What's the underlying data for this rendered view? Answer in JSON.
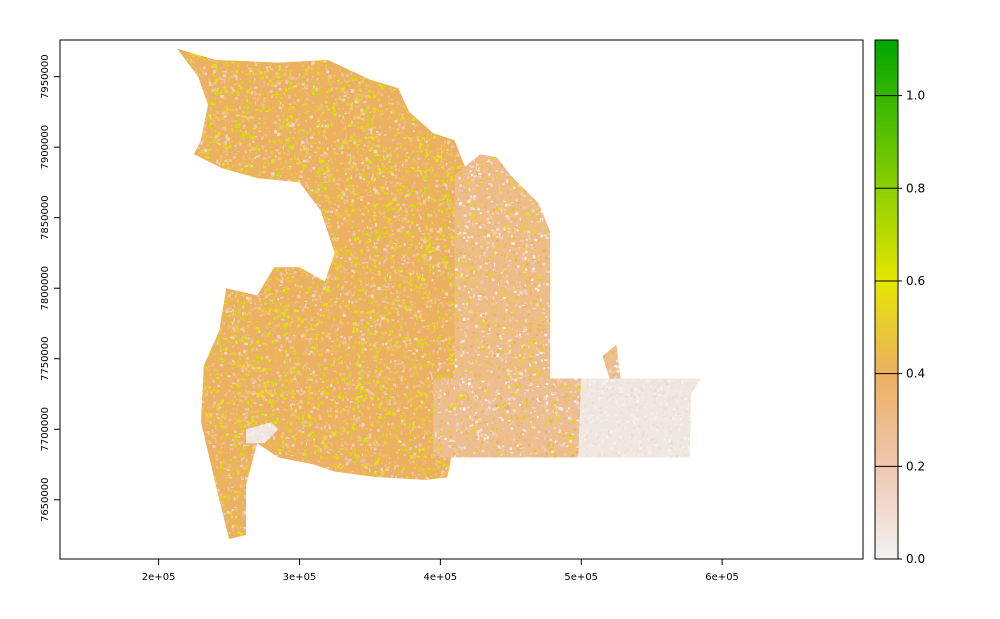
{
  "chart_data": {
    "type": "heatmap",
    "title": "",
    "xlabel": "",
    "ylabel": "",
    "xlim": [
      130000,
      700000
    ],
    "ylim": [
      7608000,
      7976000
    ],
    "x_ticks": [
      200000,
      300000,
      400000,
      500000,
      600000
    ],
    "x_tick_labels": [
      "2e+05",
      "3e+05",
      "4e+05",
      "5e+05",
      "6e+05"
    ],
    "y_ticks": [
      7650000,
      7700000,
      7750000,
      7800000,
      7850000,
      7900000,
      7950000
    ],
    "y_tick_labels": [
      "7650000",
      "7700000",
      "7750000",
      "7800000",
      "7850000",
      "7900000",
      "7950000"
    ],
    "legend": {
      "placement": "right",
      "min": 0.0,
      "max": 1.12,
      "ticks": [
        0.0,
        0.2,
        0.4,
        0.6,
        0.8,
        1.0
      ],
      "tick_labels": [
        "0.0",
        "0.2",
        "0.4",
        "0.6",
        "0.8",
        "1.0"
      ],
      "color_stops": [
        {
          "value": 0.0,
          "color": "#f2f2f2"
        },
        {
          "value": 0.2,
          "color": "#efc7b0"
        },
        {
          "value": 0.4,
          "color": "#ebb062"
        },
        {
          "value": 0.6,
          "color": "#e6e600"
        },
        {
          "value": 0.8,
          "color": "#8bd000"
        },
        {
          "value": 1.12,
          "color": "#00a600"
        }
      ]
    },
    "regions": [
      {
        "name": "western-block",
        "mean_value": 0.4,
        "polygon": [
          [
            213000,
            7970000
          ],
          [
            240000,
            7962000
          ],
          [
            285000,
            7960000
          ],
          [
            320000,
            7962000
          ],
          [
            350000,
            7948000
          ],
          [
            370000,
            7942000
          ],
          [
            378000,
            7925000
          ],
          [
            395000,
            7910000
          ],
          [
            410000,
            7905000
          ],
          [
            418000,
            7885000
          ],
          [
            425000,
            7875000
          ],
          [
            425000,
            7865000
          ],
          [
            410000,
            7860000
          ],
          [
            412000,
            7700000
          ],
          [
            405000,
            7666000
          ],
          [
            390000,
            7664000
          ],
          [
            355000,
            7666000
          ],
          [
            325000,
            7670000
          ],
          [
            310000,
            7675000
          ],
          [
            285000,
            7680000
          ],
          [
            270000,
            7690000
          ],
          [
            262000,
            7660000
          ],
          [
            262000,
            7625000
          ],
          [
            250000,
            7622000
          ],
          [
            243000,
            7650000
          ],
          [
            230000,
            7705000
          ],
          [
            232000,
            7745000
          ],
          [
            243000,
            7770000
          ],
          [
            248000,
            7800000
          ],
          [
            270000,
            7795000
          ],
          [
            282000,
            7815000
          ],
          [
            300000,
            7815000
          ],
          [
            318000,
            7805000
          ],
          [
            325000,
            7825000
          ],
          [
            315000,
            7855000
          ],
          [
            300000,
            7875000
          ],
          [
            270000,
            7878000
          ],
          [
            245000,
            7885000
          ],
          [
            225000,
            7895000
          ],
          [
            230000,
            7905000
          ],
          [
            235000,
            7930000
          ],
          [
            228000,
            7950000
          ],
          [
            213000,
            7970000
          ]
        ]
      },
      {
        "name": "central-block",
        "mean_value": 0.3,
        "polygon": [
          [
            410000,
            7880000
          ],
          [
            428000,
            7895000
          ],
          [
            440000,
            7893000
          ],
          [
            450000,
            7880000
          ],
          [
            470000,
            7860000
          ],
          [
            478000,
            7840000
          ],
          [
            478000,
            7736000
          ],
          [
            440000,
            7736000
          ],
          [
            410000,
            7700000
          ],
          [
            410000,
            7880000
          ]
        ]
      },
      {
        "name": "southeast-block",
        "mean_value": 0.28,
        "polygon": [
          [
            395000,
            7736000
          ],
          [
            520000,
            7736000
          ],
          [
            515000,
            7752000
          ],
          [
            525000,
            7760000
          ],
          [
            528000,
            7736000
          ],
          [
            500000,
            7736000
          ],
          [
            498000,
            7680000
          ],
          [
            395000,
            7680000
          ],
          [
            395000,
            7736000
          ]
        ]
      },
      {
        "name": "eastern-block",
        "mean_value": 0.05,
        "polygon": [
          [
            500000,
            7736000
          ],
          [
            585000,
            7736000
          ],
          [
            578000,
            7725000
          ],
          [
            577000,
            7680000
          ],
          [
            498000,
            7680000
          ],
          [
            500000,
            7736000
          ]
        ]
      },
      {
        "name": "inner-void-south",
        "mean_value": 0.05,
        "polygon": [
          [
            262000,
            7700000
          ],
          [
            280000,
            7705000
          ],
          [
            285000,
            7700000
          ],
          [
            275000,
            7690000
          ],
          [
            262000,
            7690000
          ]
        ]
      }
    ]
  }
}
